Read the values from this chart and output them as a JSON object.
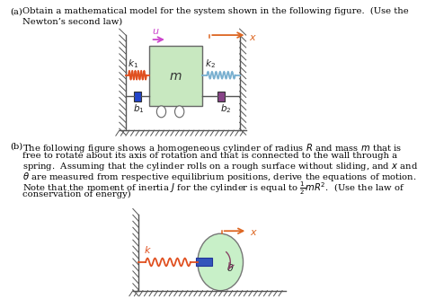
{
  "bg_color": "#ffffff",
  "part_a_label": "(a)",
  "part_a_text_line1": "Obtain a mathematical model for the system shown in the following figure.  (Use the",
  "part_a_text_line2": "Newton’s second law)",
  "part_b_label": "(b)",
  "part_b_text_line1": "The following figure shows a homogeneous cylinder of radius $R$ and mass $m$ that is",
  "part_b_text_line2": "free to rotate about its axis of rotation and that is connected to the wall through a",
  "part_b_text_line3": "spring.  Assuming that the cylinder rolls on a rough surface without sliding, and $x$ and",
  "part_b_text_line4": "$\\theta$ are measured from respective equilibrium positions, derive the equations of motion.",
  "part_b_text_line5": "Note that the moment of inertia $J$ for the cylinder is equal to $\\frac{1}{2}mR^2$.  (Use the law of",
  "part_b_text_line6": "conservation of energy)",
  "spring1_color": "#e05020",
  "spring2_color": "#7ab0d0",
  "spring_b_color": "#e05020",
  "mass_box_color": "#c8e8c0",
  "mass_box_edge": "#666666",
  "damper1_color": "#2244cc",
  "damper2_color": "#884488",
  "arrow_u_color": "#cc44cc",
  "arrow_x_color": "#dd6622",
  "cylinder_fill": "#c8f0c8",
  "cylinder_edge": "#777777",
  "blue_rect_color": "#3355bb",
  "wall_color": "#aaaaaa",
  "hatch_color": "#555555",
  "floor_color": "#555555",
  "text_color": "#222222"
}
